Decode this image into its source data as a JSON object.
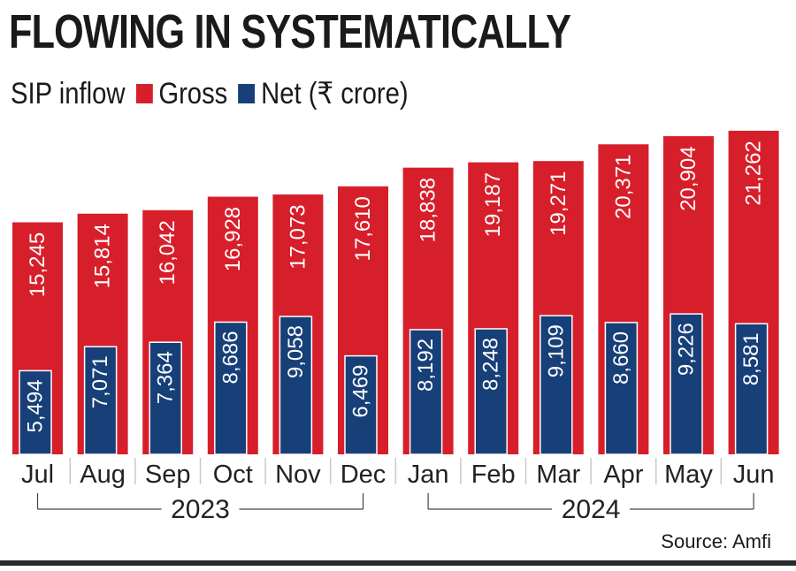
{
  "title": "FLOWING IN SYSTEMATICALLY",
  "legend": {
    "prefix": "SIP inflow",
    "gross_label": "Gross",
    "net_label": "Net (₹ crore)"
  },
  "source": "Source: Amfi",
  "colors": {
    "gross": "#d71f2b",
    "net": "#173f78",
    "text": "#1a1a1a"
  },
  "chart_data": {
    "type": "bar",
    "categories": [
      "Jul",
      "Aug",
      "Sep",
      "Oct",
      "Nov",
      "Dec",
      "Jan",
      "Feb",
      "Mar",
      "Apr",
      "May",
      "Jun"
    ],
    "series": [
      {
        "name": "Gross",
        "values": [
          15245,
          15814,
          16042,
          16928,
          17073,
          17610,
          18838,
          19187,
          19271,
          20371,
          20904,
          21262
        ],
        "labels": [
          "15,245",
          "15,814",
          "16,042",
          "16,928",
          "17,073",
          "17,610",
          "18,838",
          "19,187",
          "19,271",
          "20,371",
          "20,904",
          "21,262"
        ]
      },
      {
        "name": "Net (₹ crore)",
        "values": [
          5494,
          7071,
          7364,
          8686,
          9058,
          6469,
          8192,
          8248,
          9109,
          8660,
          9226,
          8581
        ],
        "labels": [
          "5,494",
          "7,071",
          "7,364",
          "8,686",
          "9,058",
          "6,469",
          "8,192",
          "8,248",
          "9,109",
          "8,660",
          "9,226",
          "8,581"
        ]
      }
    ],
    "year_groups": [
      {
        "label": "2023",
        "from": 0,
        "to": 5
      },
      {
        "label": "2024",
        "from": 6,
        "to": 11
      }
    ],
    "ylim": [
      0,
      23000
    ],
    "grid": false,
    "legend_position": "top-left"
  }
}
